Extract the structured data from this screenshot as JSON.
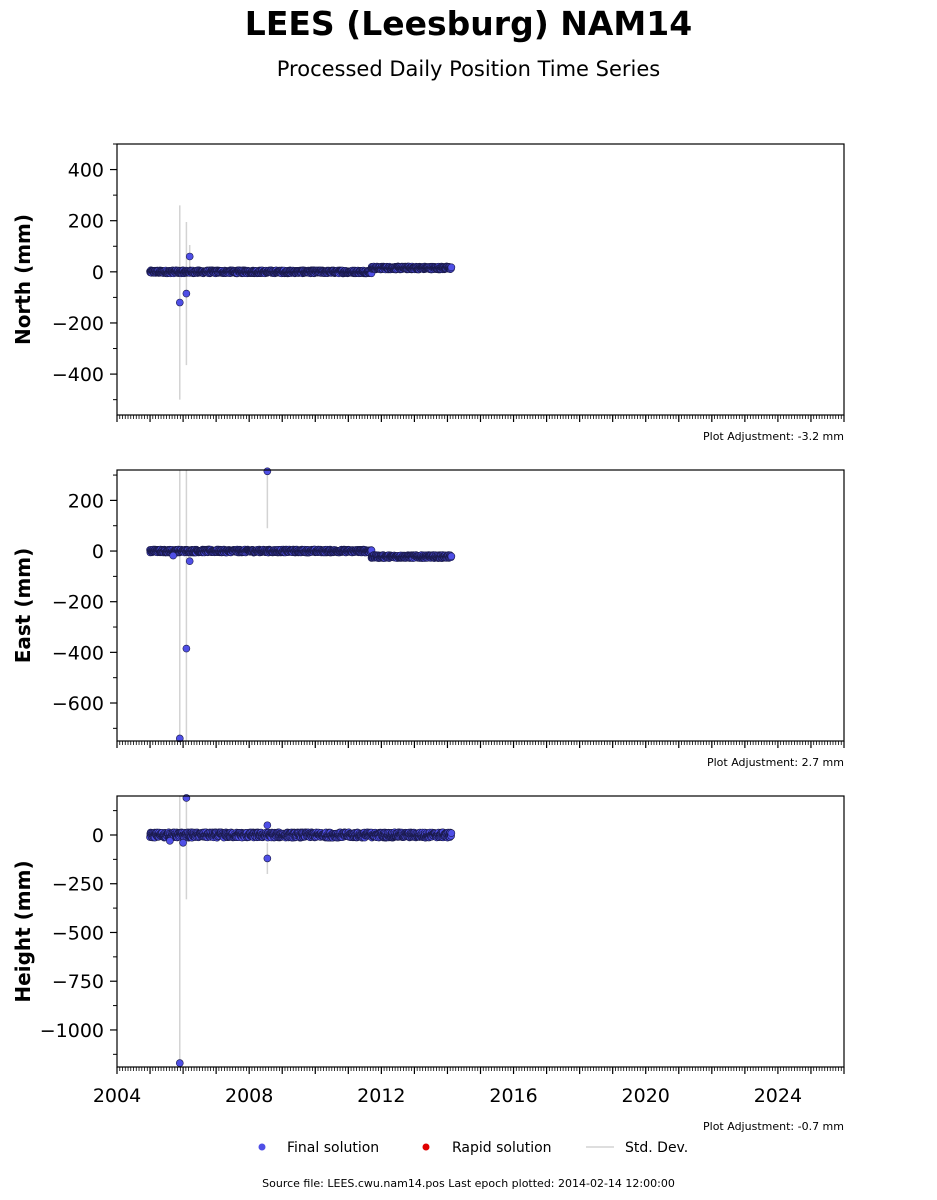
{
  "header": {
    "title": "LEES (Leesburg) NAM14",
    "subtitle": "Processed Daily Position Time Series"
  },
  "footer": {
    "source": "Source file: LEES.cwu.nam14.pos  Last epoch plotted: 2014-02-14 12:00:00"
  },
  "legend": {
    "final": "Final solution",
    "rapid": "Rapid solution",
    "std": "Std. Dev.",
    "final_color": "#4f4fe6",
    "rapid_color": "#e00000",
    "std_color": "#d3d3d3"
  },
  "chart_data": [
    {
      "type": "scatter",
      "ylabel": "North (mm)",
      "adjustment": "Plot Adjustment: -3.2 mm",
      "xlim": [
        2004,
        2026
      ],
      "ylim": [
        -560,
        500
      ],
      "yticks": [
        -400,
        -200,
        0,
        200,
        400
      ],
      "yticklabels": [
        "−400",
        "−200",
        "0",
        "200",
        "400"
      ],
      "segments": [
        {
          "x0": 2005.0,
          "x1": 2011.7,
          "y": 0,
          "spread": 6
        },
        {
          "x0": 2011.7,
          "x1": 2014.12,
          "y": 15,
          "spread": 6
        }
      ],
      "outliers": [
        {
          "x": 2005.9,
          "y": -120,
          "err": 380
        },
        {
          "x": 2006.1,
          "y": -85,
          "err": 280
        },
        {
          "x": 2006.2,
          "y": 60,
          "err": 45
        }
      ]
    },
    {
      "type": "scatter",
      "ylabel": "East (mm)",
      "adjustment": "Plot Adjustment: 2.7 mm",
      "xlim": [
        2004,
        2026
      ],
      "ylim": [
        -750,
        320
      ],
      "yticks": [
        -600,
        -400,
        -200,
        0,
        200
      ],
      "yticklabels": [
        "−600",
        "−400",
        "−200",
        "0",
        "200"
      ],
      "segments": [
        {
          "x0": 2005.0,
          "x1": 2011.7,
          "y": 0,
          "spread": 6
        },
        {
          "x0": 2011.7,
          "x1": 2014.12,
          "y": -22,
          "spread": 6
        }
      ],
      "outliers": [
        {
          "x": 2005.9,
          "y": -740,
          "err": 1100
        },
        {
          "x": 2006.1,
          "y": -385,
          "err": 900
        },
        {
          "x": 2006.2,
          "y": -40,
          "err": 0
        },
        {
          "x": 2005.7,
          "y": -18,
          "err": 0
        },
        {
          "x": 2008.55,
          "y": 315,
          "err": 225
        }
      ]
    },
    {
      "type": "scatter",
      "ylabel": "Height (mm)",
      "adjustment": "Plot Adjustment: -0.7 mm",
      "xlim": [
        2004,
        2026
      ],
      "ylim": [
        -1190,
        200
      ],
      "yticks": [
        -1000,
        -750,
        -500,
        -250,
        0
      ],
      "yticklabels": [
        "−1000",
        "−750",
        "−500",
        "−250",
        "0"
      ],
      "xticklabels": [
        "2004",
        "2008",
        "2012",
        "2016",
        "2020",
        "2024"
      ],
      "segments": [
        {
          "x0": 2005.0,
          "x1": 2014.12,
          "y": 0,
          "spread": 14
        }
      ],
      "outliers": [
        {
          "x": 2005.9,
          "y": -1170,
          "err": 1370
        },
        {
          "x": 2006.1,
          "y": 190,
          "err": 520
        },
        {
          "x": 2008.55,
          "y": -120,
          "err": 80
        },
        {
          "x": 2008.55,
          "y": 50,
          "err": 0
        },
        {
          "x": 2005.6,
          "y": -30,
          "err": 0
        },
        {
          "x": 2006.0,
          "y": -40,
          "err": 0
        }
      ]
    }
  ]
}
